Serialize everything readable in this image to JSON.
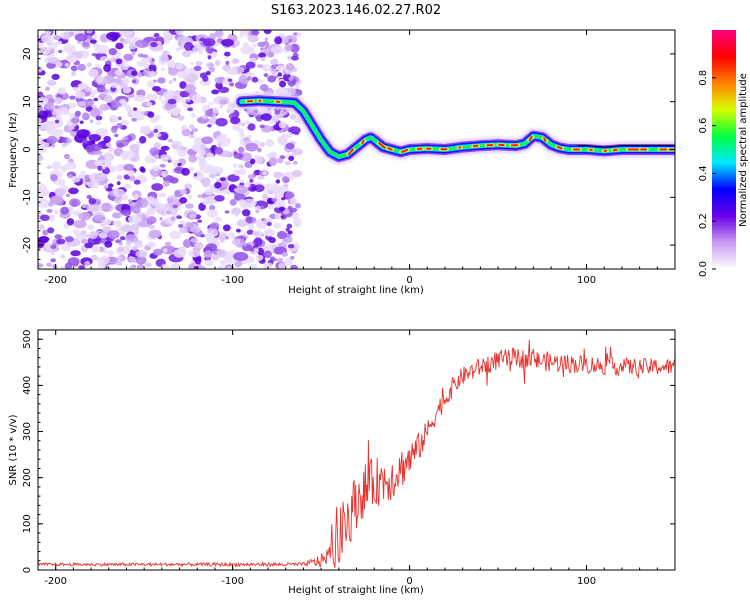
{
  "title": "S163.2023.146.02.27.R02",
  "chart_data": [
    {
      "type": "heatmap",
      "name": "spectrogram",
      "xlabel": "Height of straight line (km)",
      "ylabel": "Frequency (Hz)",
      "xlim": [
        -210,
        150
      ],
      "ylim": [
        -25,
        25
      ],
      "xticks": [
        -200,
        -100,
        0,
        100
      ],
      "xtick_labels": [
        "-200",
        "-100",
        "0",
        "100"
      ],
      "yticks": [
        20,
        10,
        0,
        -10,
        -20
      ],
      "ytick_labels": [
        "20",
        "10",
        "0",
        "-10",
        "-20"
      ],
      "noise_region_x": [
        -210,
        -63
      ],
      "signal_track": {
        "x": [
          -95,
          -85,
          -75,
          -65,
          -60,
          -55,
          -50,
          -45,
          -40,
          -35,
          -30,
          -25,
          -22,
          -20,
          -15,
          -10,
          -5,
          0,
          10,
          20,
          30,
          40,
          50,
          60,
          65,
          70,
          75,
          80,
          85,
          90,
          100,
          110,
          120,
          130,
          140,
          150
        ],
        "freq": [
          10,
          10.2,
          10,
          9.8,
          8,
          5,
          2,
          -0.5,
          -1.5,
          -1,
          0.5,
          2,
          2.5,
          2,
          0.5,
          0,
          -0.5,
          0,
          0.2,
          0,
          0.5,
          0.8,
          1,
          0.8,
          1.2,
          2.8,
          2.5,
          1,
          0.3,
          0,
          0,
          -0.3,
          0,
          0,
          0,
          0
        ]
      },
      "colorbar": {
        "label": "Normalized spectral amplitude",
        "range": [
          0,
          1
        ],
        "ticks": [
          0.0,
          0.2,
          0.4,
          0.6,
          0.8
        ],
        "tick_labels": [
          "0.0",
          "0.2",
          "0.4",
          "0.6",
          "0.8"
        ],
        "colors": [
          "#ffffff",
          "#c89af0",
          "#6a00e8",
          "#0000ff",
          "#00e8ff",
          "#00ff40",
          "#d8ff00",
          "#ff8000",
          "#ff0000",
          "#ff0080"
        ]
      }
    },
    {
      "type": "line",
      "name": "snr",
      "xlabel": "Height of straight line (km)",
      "ylabel": "SNR (10 * v/v)",
      "xlim": [
        -210,
        150
      ],
      "ylim": [
        0,
        520
      ],
      "xticks": [
        -200,
        -100,
        0,
        100
      ],
      "xtick_labels": [
        "-200",
        "-100",
        "0",
        "100"
      ],
      "yticks": [
        0,
        100,
        200,
        300,
        400,
        500
      ],
      "ytick_labels": [
        "0",
        "100",
        "200",
        "300",
        "400",
        "500"
      ],
      "color": "#e8322d",
      "trend": {
        "x": [
          -210,
          -150,
          -100,
          -60,
          -50,
          -45,
          -40,
          -35,
          -30,
          -25,
          -20,
          -15,
          -10,
          -5,
          0,
          5,
          10,
          15,
          20,
          25,
          30,
          40,
          50,
          60,
          80,
          100,
          120,
          150
        ],
        "y": [
          12,
          12,
          12,
          12,
          20,
          35,
          60,
          110,
          150,
          175,
          190,
          195,
          200,
          220,
          240,
          265,
          300,
          340,
          370,
          400,
          420,
          440,
          455,
          460,
          450,
          445,
          440,
          440
        ]
      },
      "noise_amplitude": {
        "x": [
          -210,
          -60,
          -45,
          -40,
          -30,
          -20,
          -10,
          0,
          10,
          30,
          60,
          150
        ],
        "amp": [
          3,
          4,
          20,
          70,
          60,
          55,
          50,
          40,
          25,
          20,
          22,
          18
        ]
      }
    }
  ]
}
